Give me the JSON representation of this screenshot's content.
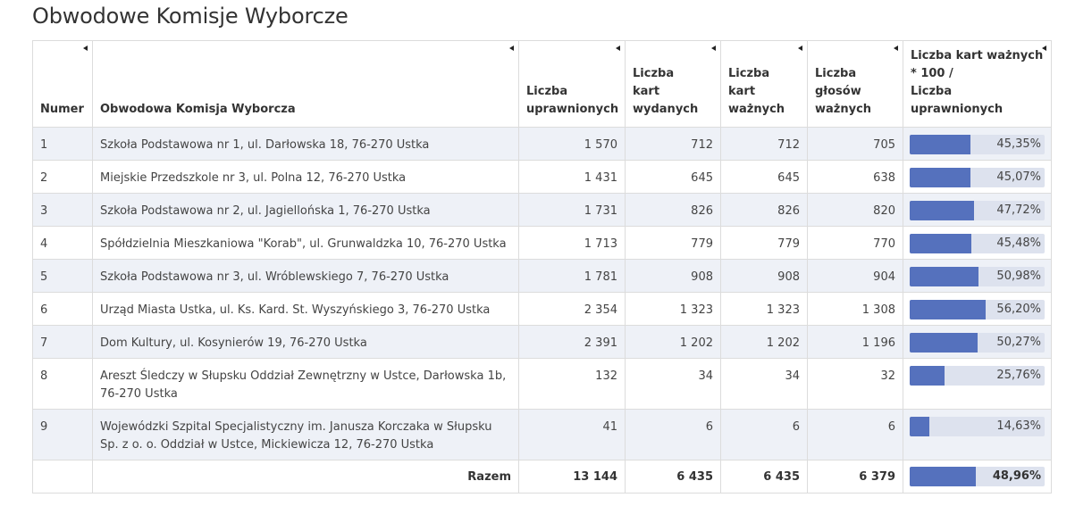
{
  "title": "Obwodowe Komisje Wyborcze",
  "headers": {
    "numer": "Numer",
    "komisja": "Obwodowa Komisja Wyborcza",
    "uprawnionych": [
      "Liczba",
      "uprawnionych"
    ],
    "wydanych": [
      "Liczba",
      "kart",
      "wydanych"
    ],
    "waznych": [
      "Liczba",
      "kart",
      "ważnych"
    ],
    "glosow": [
      "Liczba",
      "głosów",
      "ważnych"
    ],
    "frekwencja": [
      "Liczba kart ważnych",
      "* 100 /",
      "Liczba",
      "uprawnionych"
    ]
  },
  "rows": [
    {
      "numer": "1",
      "komisja": "Szkoła Podstawowa nr 1, ul. Darłowska 18, 76-270 Ustka",
      "uprawnionych": "1 570",
      "wydanych": "712",
      "waznych": "712",
      "glosow": "705",
      "pct_label": "45,35%",
      "pct": 45.35
    },
    {
      "numer": "2",
      "komisja": "Miejskie Przedszkole nr 3, ul. Polna 12, 76-270 Ustka",
      "uprawnionych": "1 431",
      "wydanych": "645",
      "waznych": "645",
      "glosow": "638",
      "pct_label": "45,07%",
      "pct": 45.07
    },
    {
      "numer": "3",
      "komisja": "Szkoła Podstawowa nr 2, ul. Jagiellońska 1, 76-270 Ustka",
      "uprawnionych": "1 731",
      "wydanych": "826",
      "waznych": "826",
      "glosow": "820",
      "pct_label": "47,72%",
      "pct": 47.72
    },
    {
      "numer": "4",
      "komisja": "Spółdzielnia Mieszkaniowa \"Korab\", ul. Grunwaldzka 10, 76-270 Ustka",
      "uprawnionych": "1 713",
      "wydanych": "779",
      "waznych": "779",
      "glosow": "770",
      "pct_label": "45,48%",
      "pct": 45.48
    },
    {
      "numer": "5",
      "komisja": "Szkoła Podstawowa nr 3, ul. Wróblewskiego 7, 76-270 Ustka",
      "uprawnionych": "1 781",
      "wydanych": "908",
      "waznych": "908",
      "glosow": "904",
      "pct_label": "50,98%",
      "pct": 50.98
    },
    {
      "numer": "6",
      "komisja": "Urząd Miasta Ustka, ul. Ks. Kard. St. Wyszyńskiego 3, 76-270 Ustka",
      "uprawnionych": "2 354",
      "wydanych": "1 323",
      "waznych": "1 323",
      "glosow": "1 308",
      "pct_label": "56,20%",
      "pct": 56.2
    },
    {
      "numer": "7",
      "komisja": "Dom Kultury, ul. Kosynierów 19, 76-270 Ustka",
      "uprawnionych": "2 391",
      "wydanych": "1 202",
      "waznych": "1 202",
      "glosow": "1 196",
      "pct_label": "50,27%",
      "pct": 50.27
    },
    {
      "numer": "8",
      "komisja": "Areszt Śledczy w Słupsku Oddział Zewnętrzny w Ustce, Darłowska 1b, 76-270 Ustka",
      "uprawnionych": "132",
      "wydanych": "34",
      "waznych": "34",
      "glosow": "32",
      "pct_label": "25,76%",
      "pct": 25.76
    },
    {
      "numer": "9",
      "komisja": "Wojewódzki Szpital Specjalistyczny im. Janusza Korczaka w Słupsku Sp. z o. o. Oddział w Ustce, Mickiewicza 12, 76-270 Ustka",
      "uprawnionych": "41",
      "wydanych": "6",
      "waznych": "6",
      "glosow": "6",
      "pct_label": "14,63%",
      "pct": 14.63
    }
  ],
  "total": {
    "label": "Razem",
    "uprawnionych": "13 144",
    "wydanych": "6 435",
    "waznych": "6 435",
    "glosow": "6 379",
    "pct_label": "48,96%",
    "pct": 48.96
  },
  "colors": {
    "bar_fill": "#5571bd",
    "bar_track": "#dde2ee",
    "row_stripe": "#eef1f7"
  }
}
